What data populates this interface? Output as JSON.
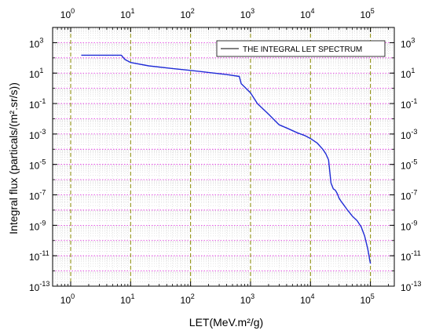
{
  "chart_data": {
    "type": "line",
    "title": "",
    "xlabel": "LET(MeV.m²/g)",
    "ylabel": "Integral flux (particals/(m².sr/s))",
    "xscale": "log",
    "yscale": "log",
    "xlim": [
      0.5,
      250000
    ],
    "ylim": [
      1e-13,
      10000.0
    ],
    "xticks": [
      {
        "value": 1,
        "base": "10",
        "exp": "0"
      },
      {
        "value": 10,
        "base": "10",
        "exp": "1"
      },
      {
        "value": 100,
        "base": "10",
        "exp": "2"
      },
      {
        "value": 1000,
        "base": "10",
        "exp": "3"
      },
      {
        "value": 10000,
        "base": "10",
        "exp": "4"
      },
      {
        "value": 100000,
        "base": "10",
        "exp": "5"
      }
    ],
    "yticks": [
      {
        "value": 1000.0,
        "base": "10",
        "exp": "3"
      },
      {
        "value": 10.0,
        "base": "10",
        "exp": "1"
      },
      {
        "value": 0.1,
        "base": "10",
        "exp": "-1"
      },
      {
        "value": 0.001,
        "base": "10",
        "exp": "-3"
      },
      {
        "value": 1e-05,
        "base": "10",
        "exp": "-5"
      },
      {
        "value": 1e-07,
        "base": "10",
        "exp": "-7"
      },
      {
        "value": 1e-09,
        "base": "10",
        "exp": "-9"
      },
      {
        "value": 1e-11,
        "base": "10",
        "exp": "-11"
      },
      {
        "value": 1e-13,
        "base": "10",
        "exp": "-13"
      }
    ],
    "grid": true,
    "legend_position": "top-right",
    "colors": {
      "series": "#1f2bd6",
      "major_grid_x": "#8a8a00",
      "grid_y": "#dd22dd",
      "minor_grid": "#cccccc"
    },
    "series": [
      {
        "name": "THE INTEGRAL LET SPECTRUM",
        "x": [
          1.5,
          3,
          5.5,
          7,
          8,
          10,
          20,
          50,
          100,
          200,
          400,
          650,
          700,
          800,
          1000,
          1300,
          2000,
          3000,
          4000,
          6000,
          8000,
          10000,
          13000,
          16000,
          18000,
          20000,
          22000,
          24000,
          26000,
          28000,
          30000,
          32000,
          35000,
          40000,
          50000,
          60000,
          70000,
          80000,
          90000,
          100000
        ],
        "y": [
          150,
          150,
          150,
          150,
          80,
          50,
          30,
          20,
          15,
          11,
          8,
          6,
          2,
          1.2,
          0.5,
          0.1,
          0.02,
          0.004,
          0.0025,
          0.0012,
          0.0008,
          0.0005,
          0.00025,
          0.0001,
          5e-05,
          2e-05,
          6e-07,
          2.5e-07,
          2e-07,
          1.2e-07,
          6e-08,
          4e-08,
          2.5e-08,
          1.2e-08,
          4e-09,
          2e-09,
          8e-10,
          2e-10,
          3e-11,
          3e-12
        ]
      }
    ]
  }
}
